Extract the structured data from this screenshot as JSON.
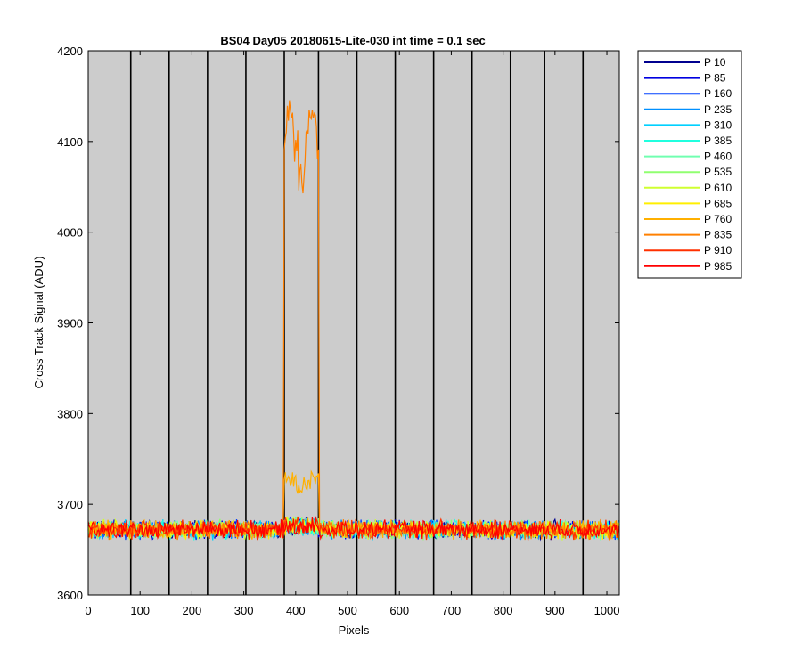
{
  "chart_data": {
    "type": "line",
    "title": "BS04 Day05 20180615-Lite-030 int time = 0.1 sec",
    "xlabel": "Pixels",
    "ylabel": "Cross Track Signal (ADU)",
    "xlim": [
      0,
      1024
    ],
    "ylim": [
      3600,
      4200
    ],
    "xticks": [
      0,
      100,
      200,
      300,
      400,
      500,
      600,
      700,
      800,
      900,
      1000
    ],
    "yticks": [
      3600,
      3700,
      3800,
      3900,
      4000,
      4100,
      4200
    ],
    "vertical_lines_x": [
      82,
      156,
      230,
      304,
      378,
      444,
      518,
      592,
      666,
      740,
      814,
      880,
      954
    ],
    "background_color": "#cccccc",
    "legend_position": "outside-top-right",
    "baseline_level": 3672,
    "noise_amplitude": 12,
    "series": [
      {
        "name": "P 10",
        "color": "#00008f"
      },
      {
        "name": "P 85",
        "color": "#0000e0"
      },
      {
        "name": "P 160",
        "color": "#0040ff"
      },
      {
        "name": "P 235",
        "color": "#0090ff"
      },
      {
        "name": "P 310",
        "color": "#00d0ff"
      },
      {
        "name": "P 385",
        "color": "#20ffdf"
      },
      {
        "name": "P 460",
        "color": "#70ffb0"
      },
      {
        "name": "P 535",
        "color": "#90ff70"
      },
      {
        "name": "P 610",
        "color": "#cfff30"
      },
      {
        "name": "P 685",
        "color": "#ffef00"
      },
      {
        "name": "P 760",
        "color": "#ffb000",
        "bump": {
          "x_start": 378,
          "x_end": 444,
          "level": 3725
        }
      },
      {
        "name": "P 835",
        "color": "#ff8000",
        "bump": {
          "x_start": 378,
          "x_end": 444,
          "level": 4100
        }
      },
      {
        "name": "P 910",
        "color": "#ff3000"
      },
      {
        "name": "P 985",
        "color": "#ff0000"
      }
    ]
  }
}
